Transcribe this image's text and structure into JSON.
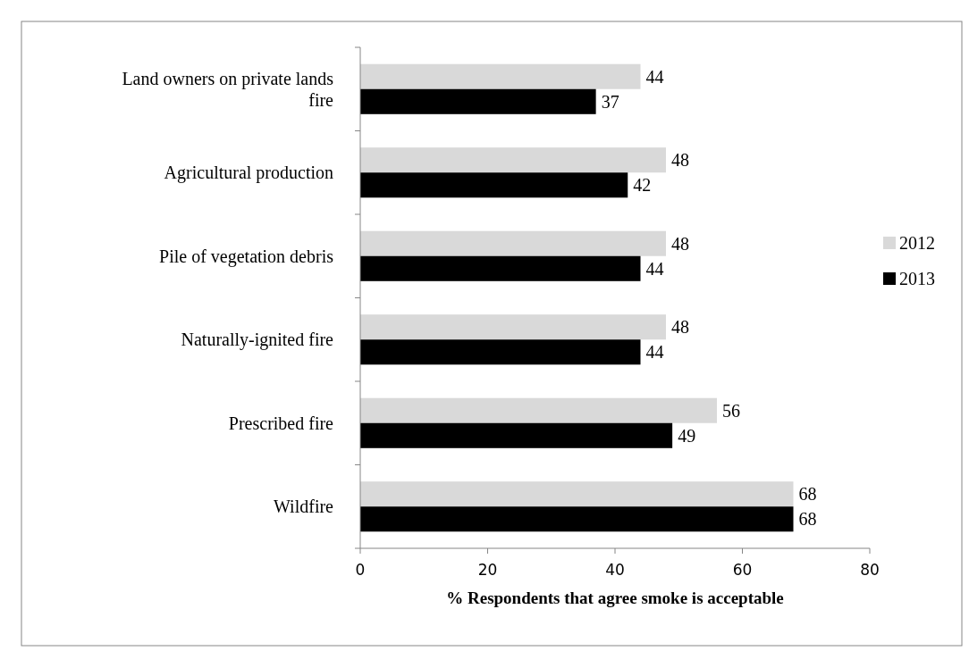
{
  "chart_data": {
    "type": "bar",
    "orientation": "horizontal",
    "xlabel": "% Respondents that agree smoke is acceptable",
    "categories": [
      "Land owners on private lands fire",
      "Agricultural production",
      "Pile of vegetation debris",
      "Naturally-ignited fire",
      "Prescribed fire",
      "Wildfire"
    ],
    "series": [
      {
        "name": "2012",
        "color": "#d9d9d9",
        "values": [
          44,
          48,
          48,
          48,
          56,
          68
        ]
      },
      {
        "name": "2013",
        "color": "#000000",
        "values": [
          37,
          42,
          44,
          44,
          49,
          68
        ]
      }
    ],
    "xlim": [
      0,
      80
    ],
    "xticks": [
      0,
      20,
      40,
      60,
      80
    ],
    "data_labels": true,
    "legend": "right",
    "grid": false
  }
}
